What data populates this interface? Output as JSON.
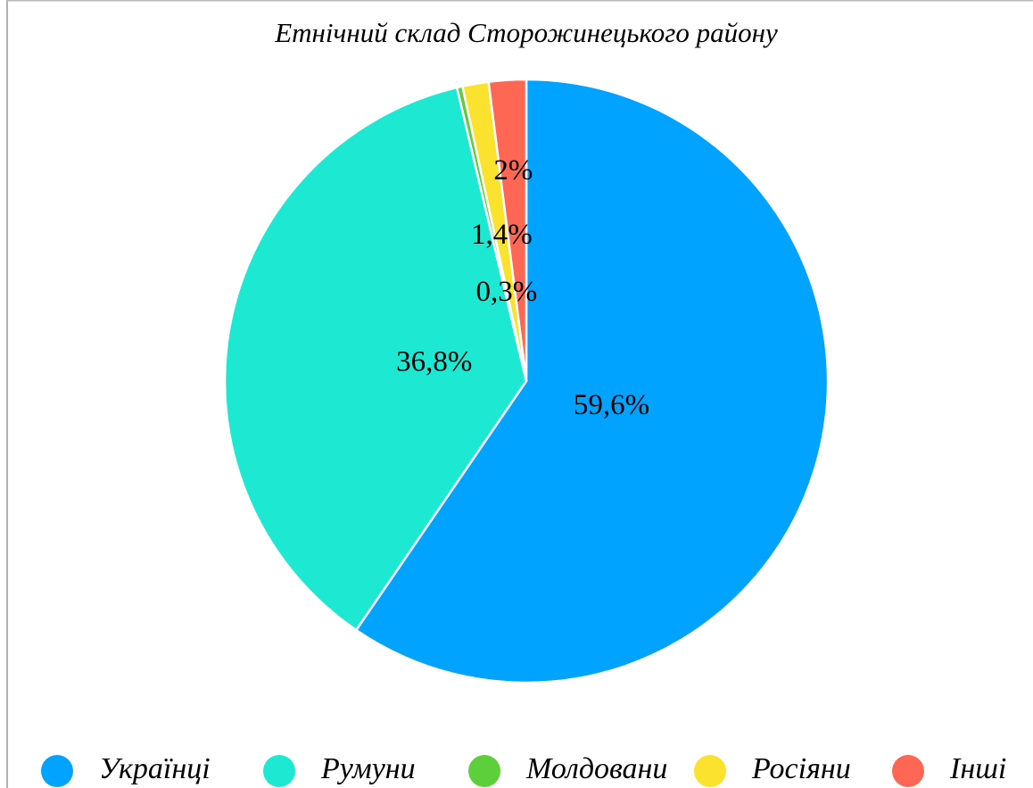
{
  "chart_data": {
    "type": "pie",
    "title": "Етнічний склад Сторожинецького району",
    "categories": [
      "Українці",
      "Румуни",
      "Молдовани",
      "Росіяни",
      "Інші"
    ],
    "values": [
      59.6,
      36.8,
      0.3,
      1.4,
      2
    ],
    "value_labels": [
      "59,6%",
      "36,8%",
      "0,3%",
      "1,4%",
      "2%"
    ],
    "colors": [
      "#00a3ff",
      "#1de9d2",
      "#5ccf3a",
      "#fbe22e",
      "#fd6753"
    ],
    "legend": "bottom"
  }
}
